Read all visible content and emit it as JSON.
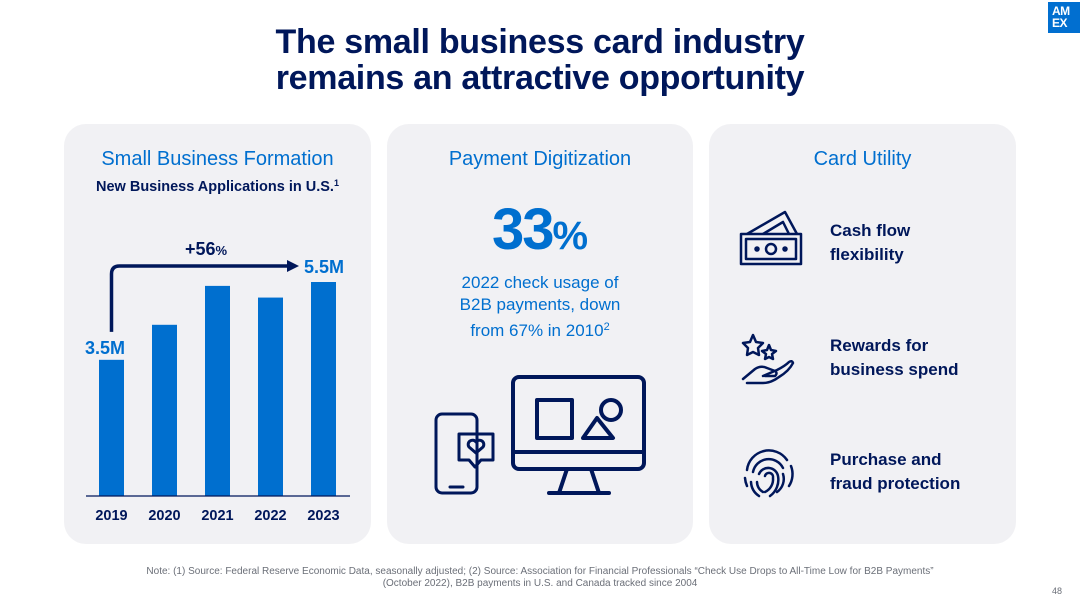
{
  "title": {
    "line1": "The small business card industry",
    "line2": "remains an attractive opportunity"
  },
  "logo": {
    "line1": "AM",
    "line2": "EX"
  },
  "panels": {
    "formation": {
      "title": "Small Business Formation",
      "subtitle": "New Business Applications in U.S.",
      "subtitle_note": "1"
    },
    "digitization": {
      "title": "Payment Digitization",
      "stat_number": "33",
      "stat_unit": "%",
      "desc_line1": "2022 check usage of",
      "desc_line2": "B2B payments, down",
      "desc_line3": "from 67% in 2010",
      "desc_note": "2"
    },
    "utility": {
      "title": "Card Utility",
      "items": [
        {
          "line1": "Cash flow",
          "line2": "flexibility",
          "icon": "cash-icon"
        },
        {
          "line1": "Rewards for",
          "line2": "business spend",
          "icon": "rewards-icon"
        },
        {
          "line1": "Purchase and",
          "line2": "fraud protection",
          "icon": "fingerprint-icon"
        }
      ]
    }
  },
  "chart_data": {
    "type": "bar",
    "categories": [
      "2019",
      "2020",
      "2021",
      "2022",
      "2023"
    ],
    "values": [
      3.5,
      4.4,
      5.4,
      5.1,
      5.5
    ],
    "ylim": [
      0,
      5.5
    ],
    "annotations": {
      "start_label": "3.5M",
      "end_label": "5.5M",
      "growth_number": "+56",
      "growth_unit": "%"
    },
    "bar_color": "#006fcf",
    "arrow_color": "#00175a"
  },
  "footer": {
    "note_line1": "Note: (1) Source: Federal Reserve Economic Data, seasonally adjusted; (2) Source: Association for Financial Professionals “Check Use Drops to All-Time Low for B2B Payments”",
    "note_line2": "(October 2022), B2B payments in U.S. and Canada tracked since 2004",
    "page_number": "48"
  }
}
